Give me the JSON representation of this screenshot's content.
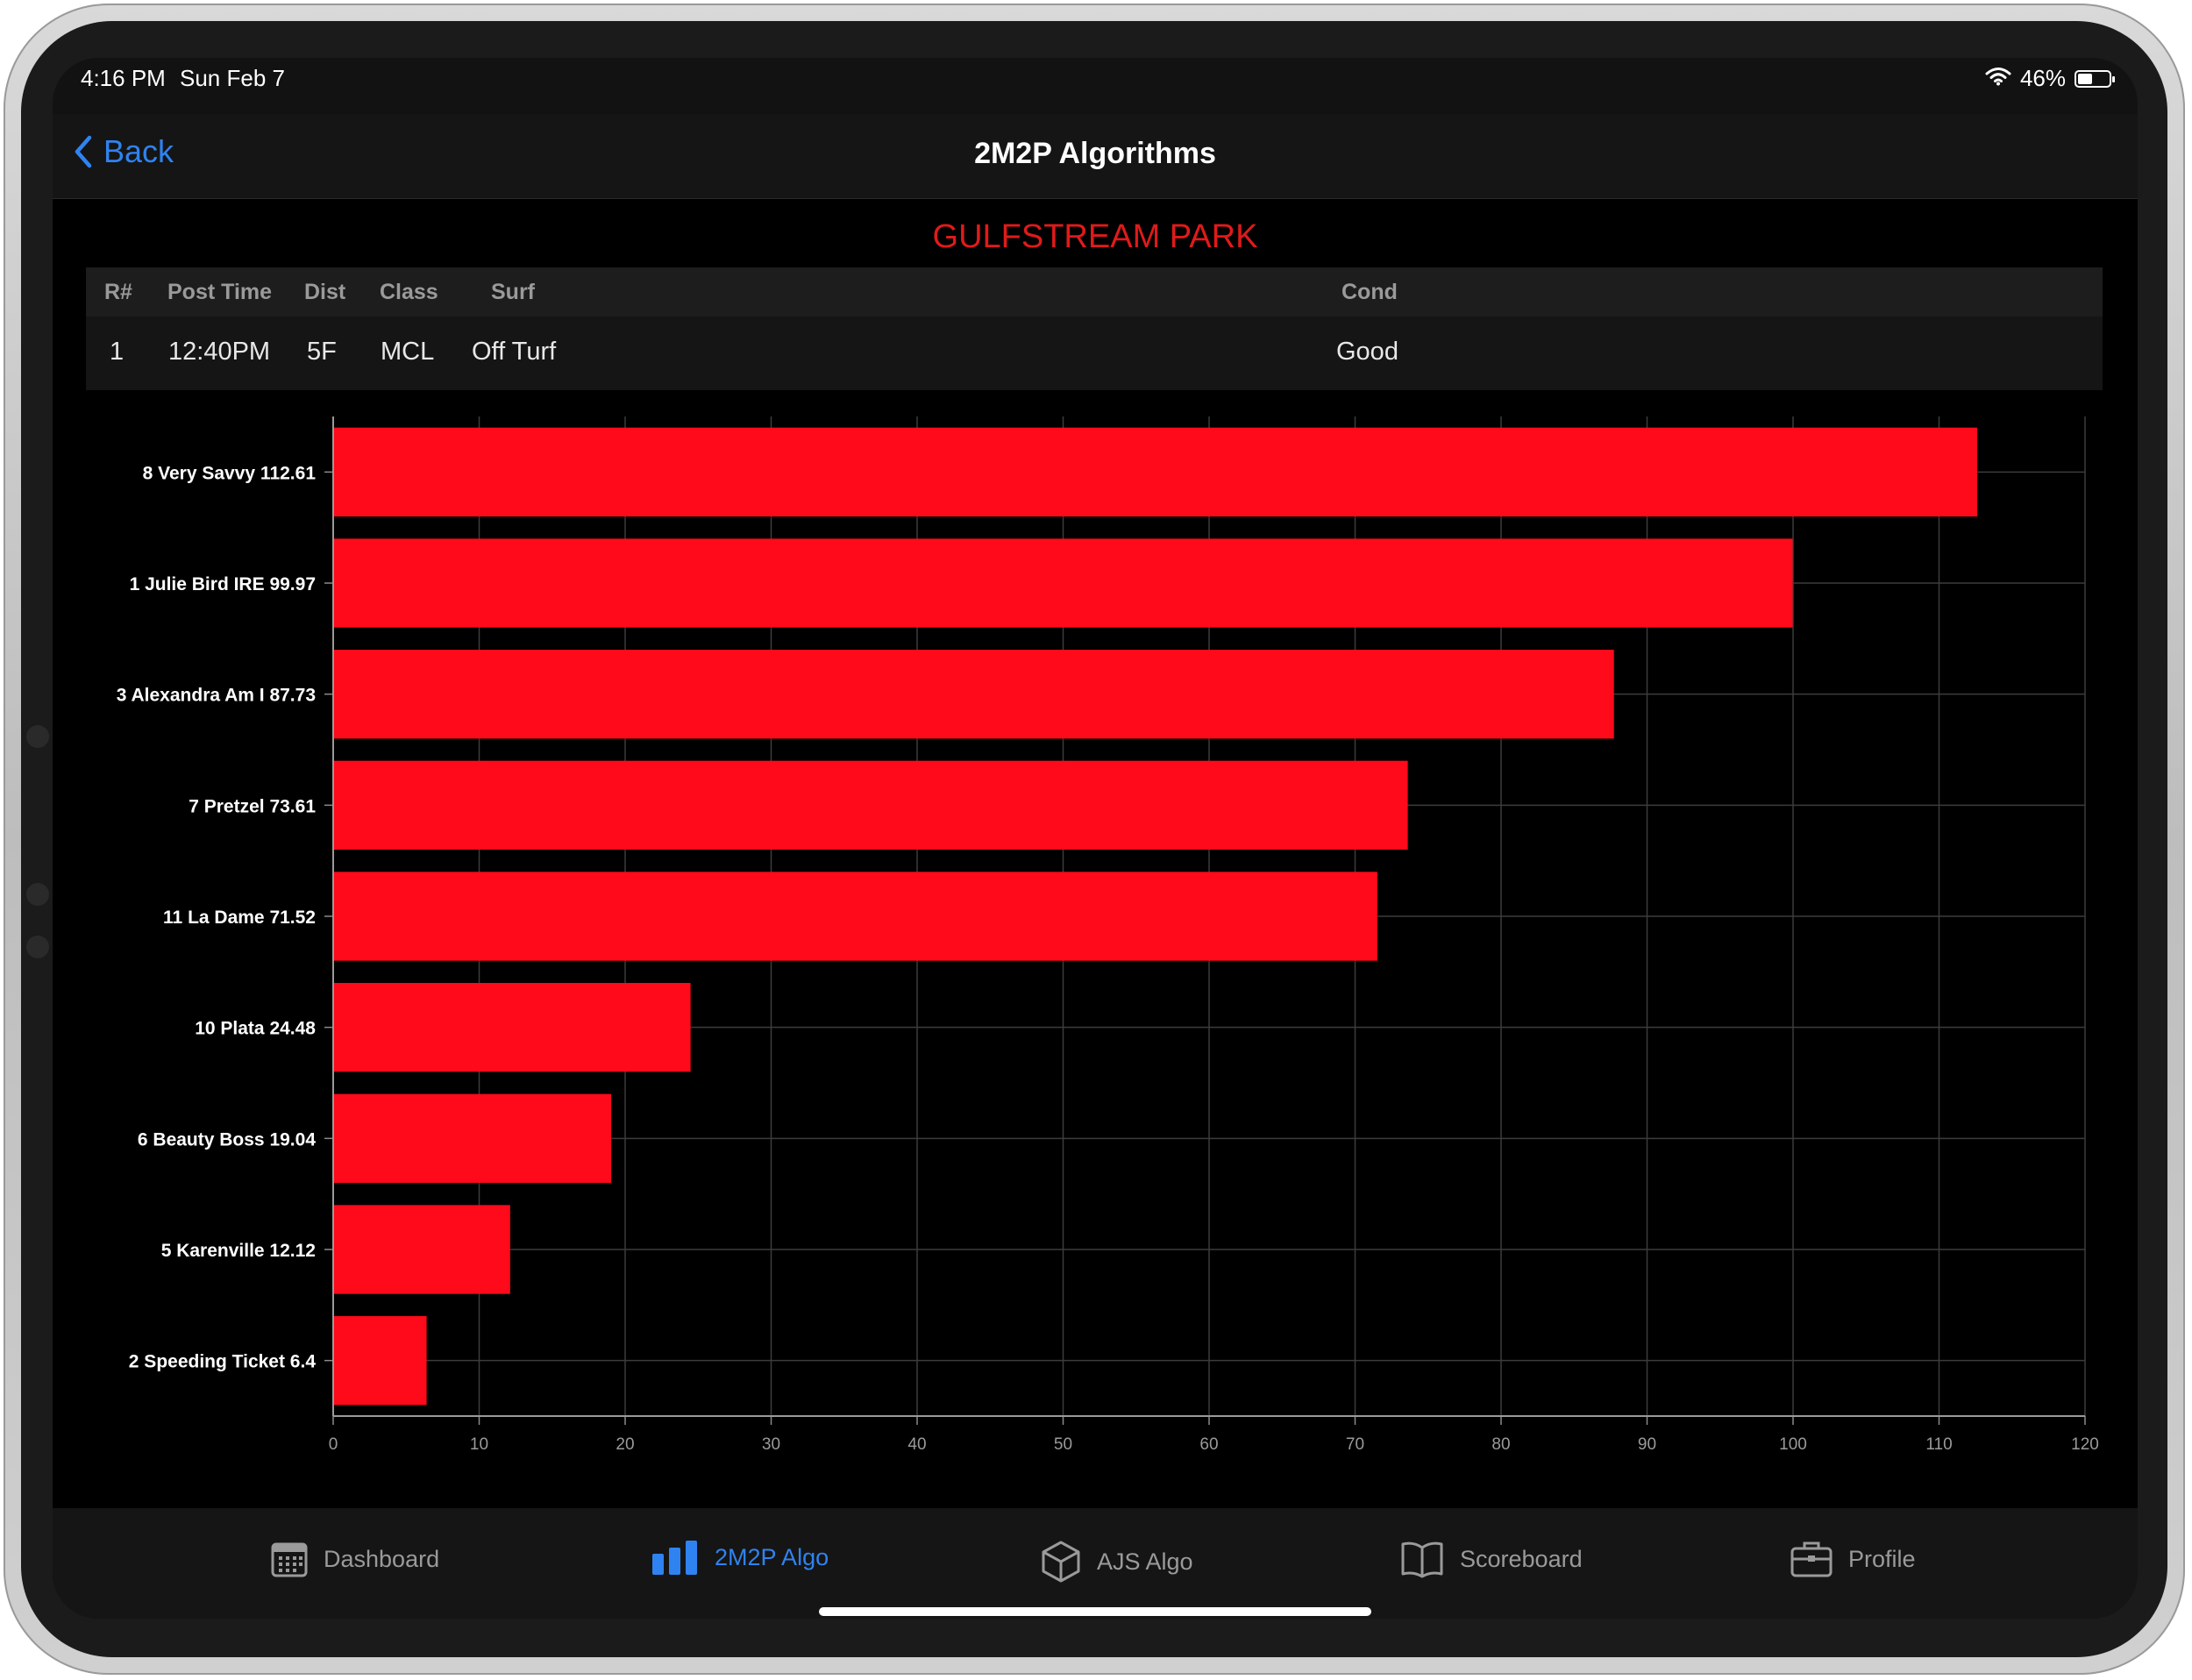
{
  "status_bar": {
    "time": "4:16 PM",
    "date": "Sun Feb 7",
    "battery": "46%",
    "battery_level": 0.46
  },
  "navbar": {
    "back_label": "Back",
    "title": "2M2P Algorithms"
  },
  "track_name": "GULFSTREAM PARK",
  "race_table": {
    "headers": [
      "R#",
      "Post Time",
      "Dist",
      "Class",
      "Surf",
      "Cond"
    ],
    "row": [
      "1",
      "12:40PM",
      "5F",
      "MCL",
      "Off Turf",
      "Good"
    ]
  },
  "colors": {
    "bar": "#ff0a1a",
    "accent": "#2f83f0",
    "track": "#e01a1a",
    "background": "#000000"
  },
  "chart_data": {
    "type": "bar",
    "orientation": "horizontal",
    "categories": [
      "8 Very Savvy 112.61",
      "1 Julie Bird IRE 99.97",
      "3 Alexandra Am I 87.73",
      "7 Pretzel 73.61",
      "11 La Dame 71.52",
      "10 Plata 24.48",
      "6 Beauty Boss 19.04",
      "5 Karenville 12.12",
      "2 Speeding Ticket 6.4"
    ],
    "values": [
      112.61,
      99.97,
      87.73,
      73.61,
      71.52,
      24.48,
      19.04,
      12.12,
      6.4
    ],
    "xlim": [
      0,
      120
    ],
    "xticks": [
      "0",
      "10",
      "20",
      "30",
      "40",
      "50",
      "60",
      "70",
      "80",
      "90",
      "100",
      "110",
      "120"
    ],
    "grid": true
  },
  "tabs": [
    {
      "label": "Dashboard",
      "icon": "calendar-icon",
      "active": false
    },
    {
      "label": "2M2P Algo",
      "icon": "bar-chart-icon",
      "active": true
    },
    {
      "label": "AJS Algo",
      "icon": "cube-icon",
      "active": false
    },
    {
      "label": "Scoreboard",
      "icon": "book-icon",
      "active": false
    },
    {
      "label": "Profile",
      "icon": "briefcase-icon",
      "active": false
    }
  ]
}
